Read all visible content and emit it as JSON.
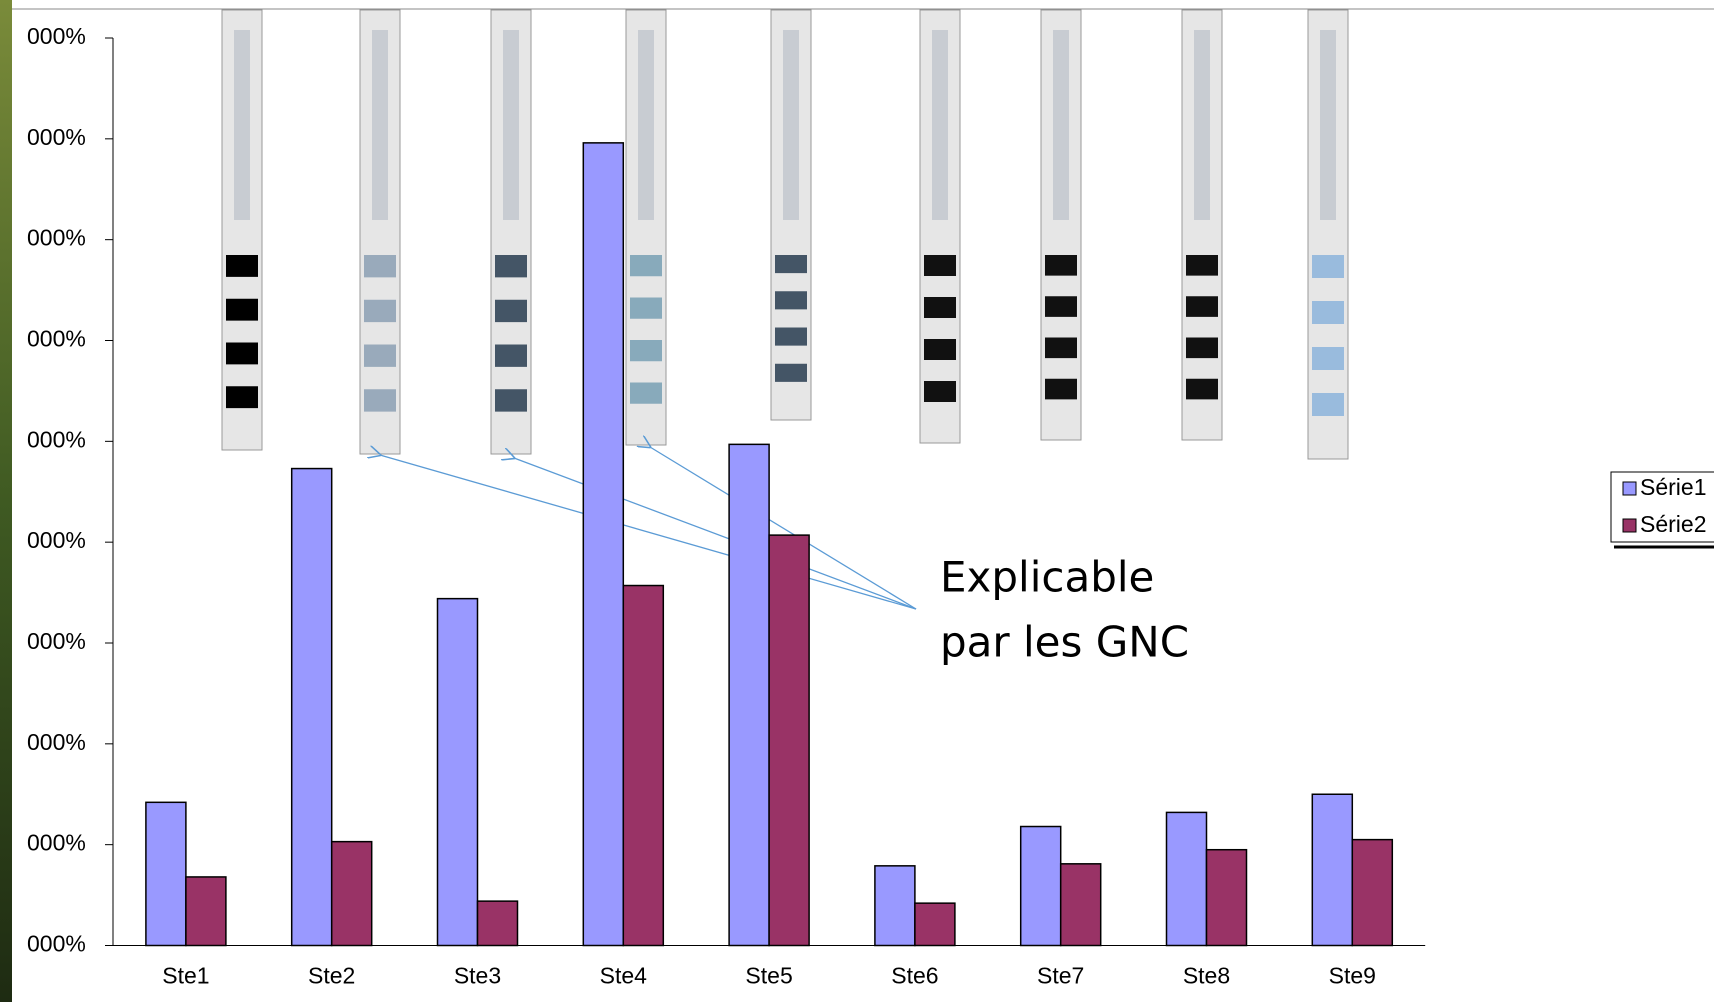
{
  "chart_data": {
    "type": "bar",
    "categories": [
      "Ste1",
      "Ste2",
      "Ste3",
      "Ste4",
      "Ste5",
      "Ste6",
      "Ste7",
      "Ste8",
      "Ste9"
    ],
    "series": [
      {
        "name": "Série1",
        "color": "#9999ff",
        "values": [
          1.42,
          4.73,
          3.44,
          7.96,
          4.97,
          0.79,
          1.18,
          1.32,
          1.5
        ]
      },
      {
        "name": "Série2",
        "color": "#993366",
        "values": [
          0.68,
          1.03,
          0.44,
          3.57,
          4.07,
          0.42,
          0.81,
          0.95,
          1.05
        ]
      }
    ],
    "ylim": [
      0,
      9
    ],
    "yticks": [
      {
        "value": 0,
        "label": "000%"
      },
      {
        "value": 1,
        "label": "000%"
      },
      {
        "value": 2,
        "label": "000%"
      },
      {
        "value": 3,
        "label": "000%"
      },
      {
        "value": 4,
        "label": "000%"
      },
      {
        "value": 5,
        "label": "000%"
      },
      {
        "value": 6,
        "label": "000%"
      },
      {
        "value": 7,
        "label": "000%"
      },
      {
        "value": 8,
        "label": "000%"
      },
      {
        "value": 9,
        "label": "000%"
      }
    ],
    "annotation": [
      "Explicable",
      "par les GNC"
    ]
  }
}
